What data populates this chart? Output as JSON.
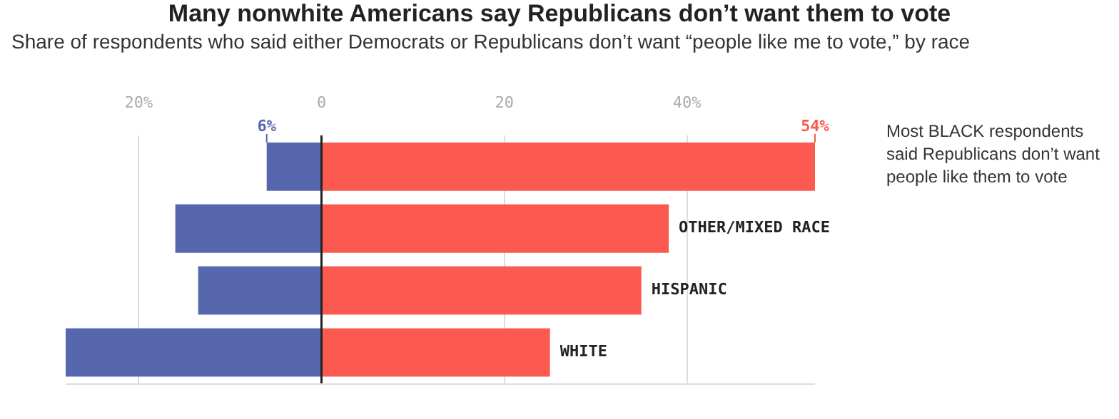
{
  "chart_data": {
    "type": "bar",
    "orientation": "horizontal",
    "title": "Many nonwhite Americans say Republicans don’t want them to vote",
    "subtitle": "Share of respondents who said either Democrats or Republicans don’t want “people like me to vote,” by race",
    "categories": [
      null,
      "OTHER/MIXED RACE",
      "HISPANIC",
      "WHITE"
    ],
    "series": [
      {
        "color": "#5767ad",
        "base": [
          -6,
          -16,
          -13.5,
          -28
        ],
        "values": [
          6,
          16,
          13.5,
          28
        ],
        "value_labels": [
          "6%",
          null,
          null,
          null
        ]
      },
      {
        "color": "#fc5a50",
        "values": [
          54,
          38,
          35,
          25
        ],
        "value_labels": [
          "54%",
          null,
          null,
          null
        ]
      }
    ],
    "xlim": [
      -28,
      54
    ],
    "xticks": [
      {
        "value": -20,
        "label": "20%"
      },
      0,
      20,
      {
        "value": 40,
        "label": "40%"
      }
    ],
    "grid": "x",
    "annotations": [
      "Most BLACK respondents said Republicans don’t want people like them to vote"
    ]
  }
}
